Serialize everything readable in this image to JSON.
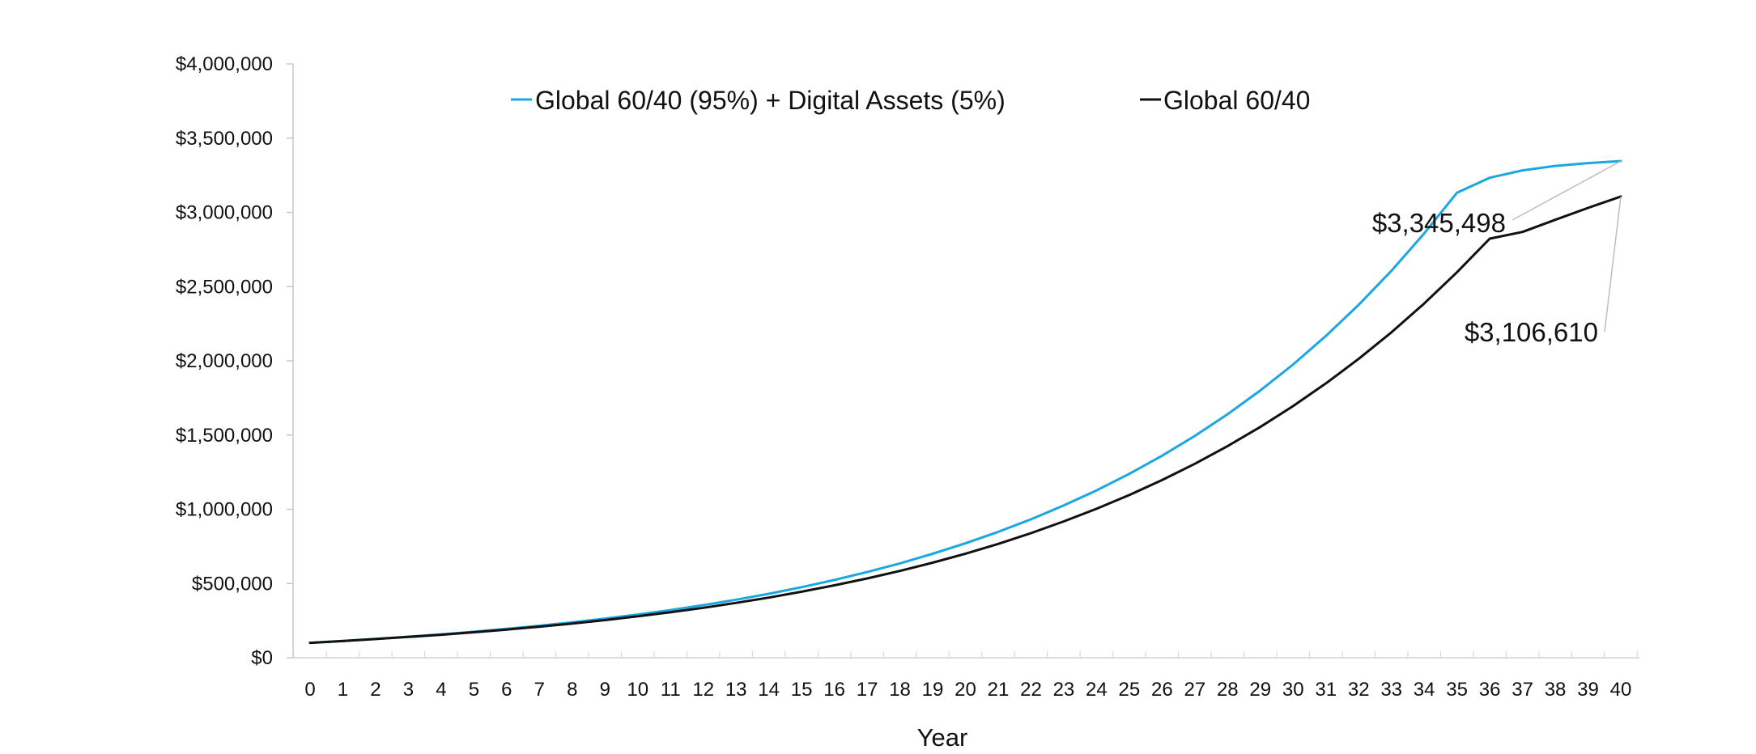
{
  "chart_data": {
    "type": "line",
    "title": "",
    "xlabel": "Year",
    "ylabel": "",
    "x": [
      0,
      1,
      2,
      3,
      4,
      5,
      6,
      7,
      8,
      9,
      10,
      11,
      12,
      13,
      14,
      15,
      16,
      17,
      18,
      19,
      20,
      21,
      22,
      23,
      24,
      25,
      26,
      27,
      28,
      29,
      30,
      31,
      32,
      33,
      34,
      35,
      36,
      37,
      38,
      39,
      40
    ],
    "x_tick_labels": [
      "0",
      "1",
      "2",
      "3",
      "4",
      "5",
      "6",
      "7",
      "8",
      "9",
      "10",
      "11",
      "12",
      "13",
      "14",
      "15",
      "16",
      "17",
      "18",
      "19",
      "20",
      "21",
      "22",
      "23",
      "24",
      "25",
      "26",
      "27",
      "28",
      "29",
      "30",
      "31",
      "32",
      "33",
      "34",
      "35",
      "36",
      "37",
      "38",
      "39",
      "40"
    ],
    "ylim": [
      0,
      4000000
    ],
    "y_ticks": [
      0,
      500000,
      1000000,
      1500000,
      2000000,
      2500000,
      3000000,
      3500000,
      4000000
    ],
    "y_tick_labels": [
      "$0",
      "$500,000",
      "$1,000,000",
      "$1,500,000",
      "$2,000,000",
      "$2,500,000",
      "$3,000,000",
      "$3,500,000",
      "$4,000,000"
    ],
    "grid": false,
    "legend_position": "top",
    "series": [
      {
        "name": "Global 60/40 (95%) + Digital Assets (5%)",
        "color": "#1aa7e2",
        "start_value": 100000,
        "end_value": 3345498,
        "values": [
          100000,
          113000,
          127000,
          141500,
          157500,
          175000,
          194500,
          215500,
          238500,
          263500,
          291000,
          321000,
          354000,
          390500,
          430500,
          475000,
          523500,
          577000,
          635500,
          700000,
          770500,
          848000,
          932500,
          1025500,
          1127000,
          1238500,
          1360500,
          1494000,
          1640500,
          1800500,
          1975500,
          2167500,
          2377000,
          2606500,
          2857500,
          3132000,
          3233000,
          3283000,
          3313000,
          3332000,
          3345498
        ]
      },
      {
        "name": "Global 60/40",
        "color": "#111111",
        "start_value": 100000,
        "end_value": 3106610,
        "values": [
          100000,
          112500,
          126000,
          140000,
          155000,
          171500,
          189500,
          209000,
          230500,
          253500,
          279000,
          306500,
          336500,
          369500,
          405000,
          444500,
          487500,
          534000,
          585000,
          640500,
          701000,
          767000,
          839500,
          918000,
          1003500,
          1096000,
          1197000,
          1306500,
          1425500,
          1555000,
          1695500,
          1848000,
          2013000,
          2192000,
          2386000,
          2596000,
          2823000,
          2868000,
          2950000,
          3030000,
          3106610
        ]
      }
    ],
    "annotations": [
      {
        "text": "$3,345,498",
        "series": "Global 60/40 (95%) + Digital Assets (5%)",
        "x": 40,
        "y": 3345498
      },
      {
        "text": "$3,106,610",
        "series": "Global 60/40",
        "x": 40,
        "y": 3106610
      }
    ]
  }
}
